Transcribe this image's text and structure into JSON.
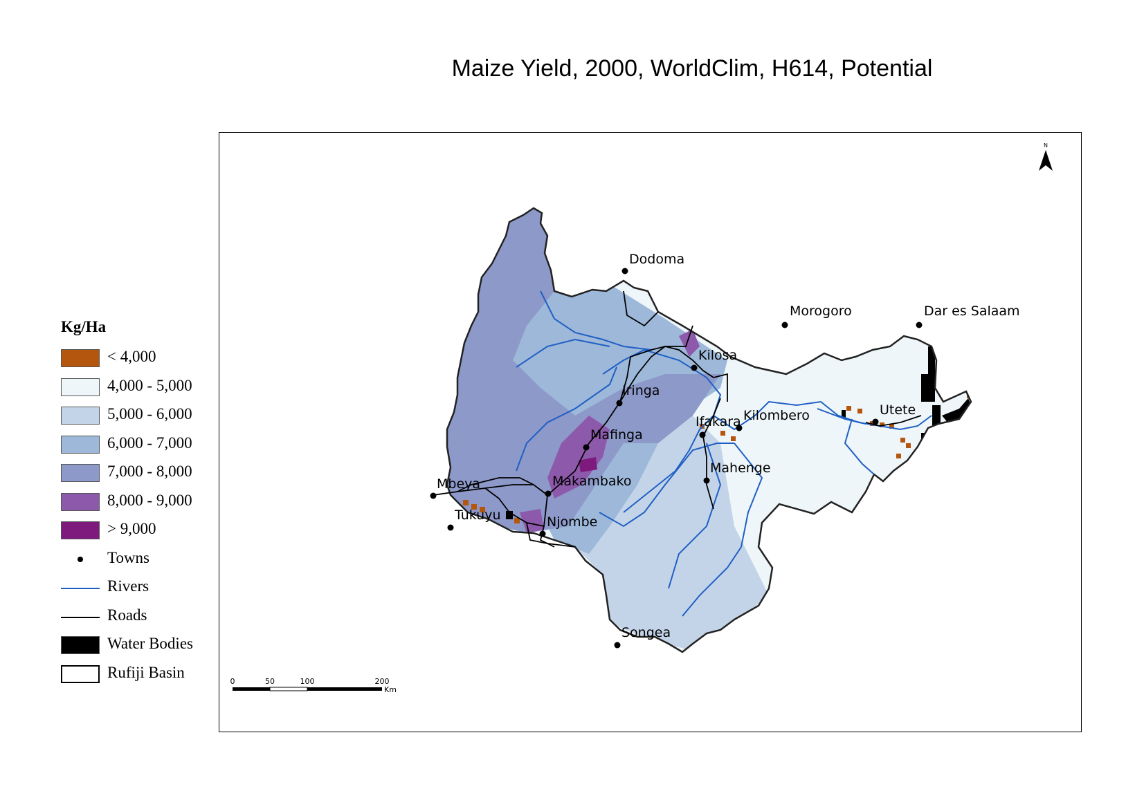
{
  "title": "Maize Yield, 2000, WorldClim, H614, Potential",
  "legend": {
    "title": "Kg/Ha",
    "classes": [
      {
        "label": "< 4,000",
        "color": "#b5560f"
      },
      {
        "label": "4,000 - 5,000",
        "color": "#eef6f9"
      },
      {
        "label": "5,000 - 6,000",
        "color": "#c4d4e8"
      },
      {
        "label": "6,000 - 7,000",
        "color": "#9db8d9"
      },
      {
        "label": "7,000 - 8,000",
        "color": "#8d99c9"
      },
      {
        "label": "8,000 - 9,000",
        "color": "#8d5aab"
      },
      {
        "label": "> 9,000",
        "color": "#7e1a7e"
      }
    ],
    "towns_label": "Towns",
    "rivers_label": "Rivers",
    "rivers_color": "#1f5fc4",
    "roads_label": "Roads",
    "water_label": "Water Bodies",
    "basin_label": "Rufiji Basin"
  },
  "towns": {
    "dodoma": "Dodoma",
    "morogoro": "Morogoro",
    "dar": "Dar es Salaam",
    "kilosa": "Kilosa",
    "iringa": "Iringa",
    "utete": "Utete",
    "ifakara": "Ifakara",
    "kilombero": "Kilombero",
    "mafinga": "Mafinga",
    "mahenge": "Mahenge",
    "mbeya": "Mbeya",
    "makambako": "Makambako",
    "tukuyu": "Tukuyu",
    "njombe": "Njombe",
    "songea": "Songea"
  },
  "north_arrow": "N",
  "scale_bar": {
    "ticks": [
      "0",
      "50",
      "100",
      "200"
    ],
    "unit": "Km"
  }
}
